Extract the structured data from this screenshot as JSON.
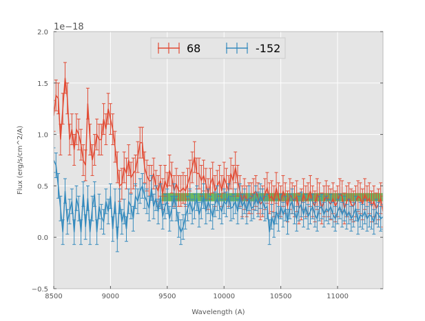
{
  "chart_data": {
    "type": "line",
    "title": "",
    "xlabel": "Wavelength (A)",
    "ylabel": "Flux (erg/s/cm^2/A)",
    "y_offset_label": "1e−18",
    "xlim": [
      8500,
      11400
    ],
    "ylim": [
      -0.5,
      2.0
    ],
    "x_ticks": [
      8500,
      9000,
      9500,
      10000,
      10500,
      11000
    ],
    "x_tick_labels": [
      "8500",
      "9000",
      "9500",
      "10000",
      "10500",
      "11000"
    ],
    "y_ticks": [
      -0.5,
      0.0,
      0.5,
      1.0,
      1.5,
      2.0
    ],
    "y_tick_labels": [
      "−0.5",
      "0.0",
      "0.5",
      "1.0",
      "1.5",
      "2.0"
    ],
    "grid": true,
    "legend_position": "top-center",
    "band": {
      "x_start": 9450,
      "x_end": 11400,
      "y_low": 0.35,
      "y_high": 0.43,
      "color": "#44a832",
      "opacity": 0.75
    },
    "series": [
      {
        "name": "68",
        "color": "#e24a33",
        "x_start": 8500,
        "x_step": 20,
        "error": 0.15,
        "values": [
          1.18,
          1.38,
          1.35,
          0.95,
          1.25,
          1.55,
          1.35,
          0.95,
          1.05,
          0.85,
          1.05,
          1.0,
          0.9,
          0.75,
          0.7,
          1.3,
          0.95,
          0.75,
          0.85,
          1.0,
          0.95,
          0.95,
          1.15,
          1.05,
          1.25,
          1.15,
          1.05,
          0.88,
          0.68,
          0.5,
          0.52,
          0.68,
          0.62,
          0.75,
          0.58,
          0.62,
          0.65,
          0.78,
          0.92,
          0.92,
          0.68,
          0.6,
          0.55,
          0.55,
          0.62,
          0.5,
          0.45,
          0.55,
          0.42,
          0.55,
          0.48,
          0.65,
          0.58,
          0.45,
          0.52,
          0.45,
          0.45,
          0.48,
          0.45,
          0.52,
          0.6,
          0.68,
          0.78,
          0.62,
          0.62,
          0.55,
          0.6,
          0.52,
          0.42,
          0.52,
          0.58,
          0.45,
          0.5,
          0.55,
          0.45,
          0.58,
          0.52,
          0.45,
          0.62,
          0.55,
          0.68,
          0.55,
          0.45,
          0.35,
          0.42,
          0.35,
          0.38,
          0.38,
          0.42,
          0.45,
          0.38,
          0.32,
          0.35,
          0.42,
          0.48,
          0.38,
          0.4,
          0.35,
          0.48,
          0.38,
          0.35,
          0.45,
          0.38,
          0.3,
          0.42,
          0.38,
          0.35,
          0.4,
          0.28,
          0.32,
          0.42,
          0.35,
          0.38,
          0.45,
          0.35,
          0.3,
          0.42,
          0.38,
          0.28,
          0.35,
          0.4,
          0.35,
          0.32,
          0.38,
          0.3,
          0.35,
          0.42,
          0.4,
          0.28,
          0.35,
          0.38,
          0.32,
          0.3,
          0.35,
          0.4,
          0.38,
          0.32,
          0.42,
          0.35,
          0.38,
          0.3,
          0.35,
          0.28,
          0.32,
          0.38,
          0.25
        ]
      },
      {
        "name": "-152",
        "color": "#348abd",
        "x_start": 8500,
        "x_step": 20,
        "error": 0.12,
        "values": [
          0.75,
          0.7,
          0.5,
          0.28,
          0.05,
          0.45,
          0.15,
          0.25,
          0.35,
          0.05,
          0.38,
          0.28,
          0.05,
          0.42,
          0.1,
          0.38,
          0.05,
          0.28,
          0.42,
          0.05,
          0.3,
          0.2,
          0.15,
          0.35,
          0.25,
          0.4,
          0.08,
          0.35,
          -0.02,
          0.35,
          0.15,
          0.25,
          0.08,
          0.35,
          0.3,
          0.18,
          0.4,
          0.35,
          0.45,
          0.5,
          0.4,
          0.35,
          0.28,
          0.48,
          0.3,
          0.38,
          0.25,
          0.4,
          0.2,
          0.3,
          0.35,
          0.18,
          0.28,
          0.4,
          0.28,
          0.12,
          0.05,
          0.1,
          0.2,
          0.28,
          0.35,
          0.25,
          0.3,
          0.38,
          0.22,
          0.3,
          0.4,
          0.25,
          0.35,
          0.28,
          0.2,
          0.32,
          0.38,
          0.3,
          0.25,
          0.35,
          0.32,
          0.4,
          0.28,
          0.3,
          0.35,
          0.25,
          0.4,
          0.3,
          0.35,
          0.25,
          0.38,
          0.28,
          0.3,
          0.38,
          0.32,
          0.4,
          0.35,
          0.28,
          0.3,
          0.05,
          0.2,
          0.12,
          0.25,
          0.18,
          0.3,
          0.22,
          0.28,
          0.15,
          0.3,
          0.35,
          0.25,
          0.18,
          0.28,
          0.32,
          0.22,
          0.3,
          0.2,
          0.25,
          0.3,
          0.22,
          0.18,
          0.28,
          0.3,
          0.22,
          0.28,
          0.25,
          0.3,
          0.22,
          0.18,
          0.25,
          0.3,
          0.22,
          0.28,
          0.2,
          0.25,
          0.18,
          0.22,
          0.28,
          0.15,
          0.22,
          0.2,
          0.25,
          0.18,
          0.22,
          0.2,
          0.15,
          0.25,
          0.22,
          0.18,
          0.2
        ]
      }
    ]
  }
}
